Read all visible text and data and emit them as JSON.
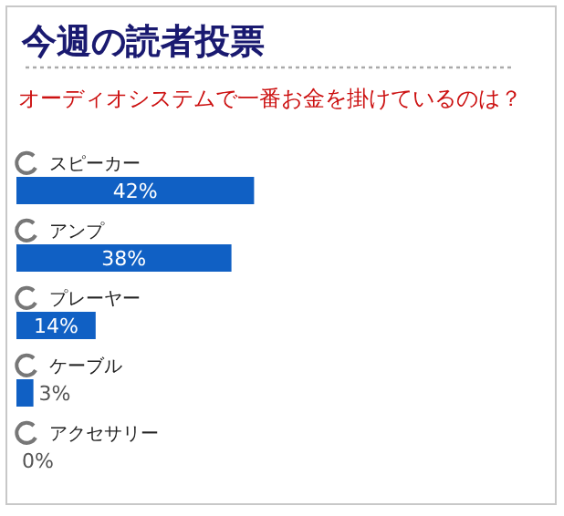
{
  "chart_data": {
    "type": "bar",
    "orientation": "horizontal",
    "title": "今週の読者投票",
    "subtitle": "オーディオシステムで一番お金を掛けているのは？",
    "categories": [
      "スピーカー",
      "アンプ",
      "プレーヤー",
      "ケーブル",
      "アクセサリー"
    ],
    "values": [
      42,
      38,
      14,
      3,
      0
    ],
    "value_labels": [
      "42%",
      "38%",
      "14%",
      "3%",
      "0%"
    ],
    "color": "#1060c4"
  }
}
